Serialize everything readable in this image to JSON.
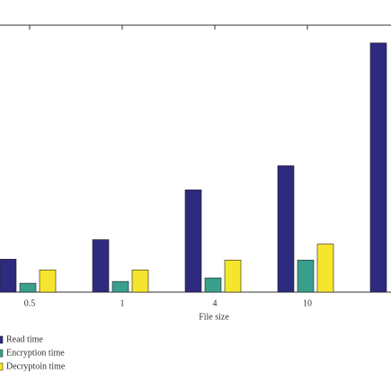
{
  "chart_data": {
    "type": "bar",
    "x_label": "File size",
    "categories": [
      "0.5",
      "1",
      "4",
      "10",
      null
    ],
    "series": [
      {
        "name": "Read time",
        "color": "#2d2a80",
        "values": [
          37,
          59,
          115,
          142,
          280
        ]
      },
      {
        "name": "Encryption time",
        "color": "#3a9f8c",
        "values": [
          10,
          12,
          16,
          36,
          null
        ]
      },
      {
        "name": "Decryptoin time",
        "color": "#f5e52c",
        "values": [
          25,
          25,
          36,
          54,
          null
        ]
      }
    ],
    "ylim": [
      0,
      300
    ]
  }
}
